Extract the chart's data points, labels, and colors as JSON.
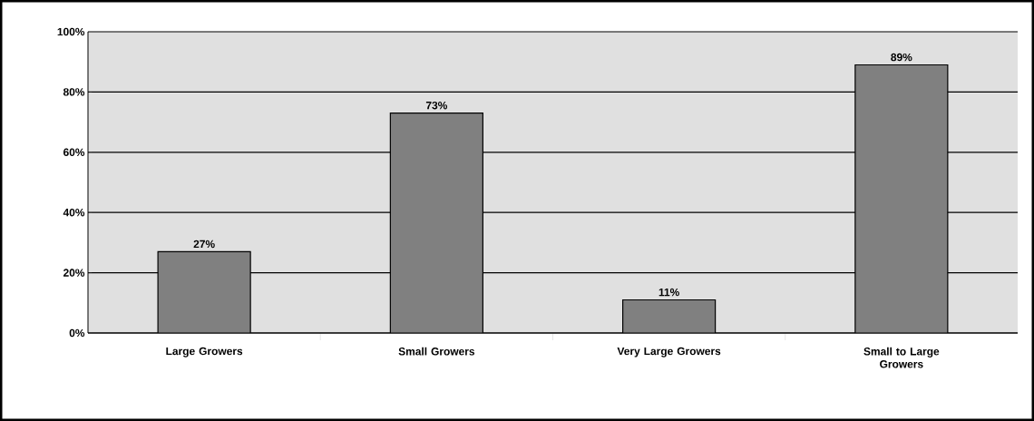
{
  "chart_data": {
    "type": "bar",
    "categories": [
      "Large Growers",
      "Small Growers",
      "Very Large Growers",
      "Small to Large Growers"
    ],
    "values": [
      27,
      73,
      11,
      89
    ],
    "value_labels": [
      "27%",
      "73%",
      "11%",
      "89%"
    ],
    "color": "#808080",
    "ylim": [
      0,
      100
    ],
    "yticks": [
      {
        "value": 0,
        "label": "0%"
      },
      {
        "value": 20,
        "label": "20%"
      },
      {
        "value": 40,
        "label": "40%"
      },
      {
        "value": 60,
        "label": "60%"
      },
      {
        "value": 80,
        "label": "80%"
      },
      {
        "value": 100,
        "label": "100%"
      }
    ],
    "grid": "y"
  }
}
